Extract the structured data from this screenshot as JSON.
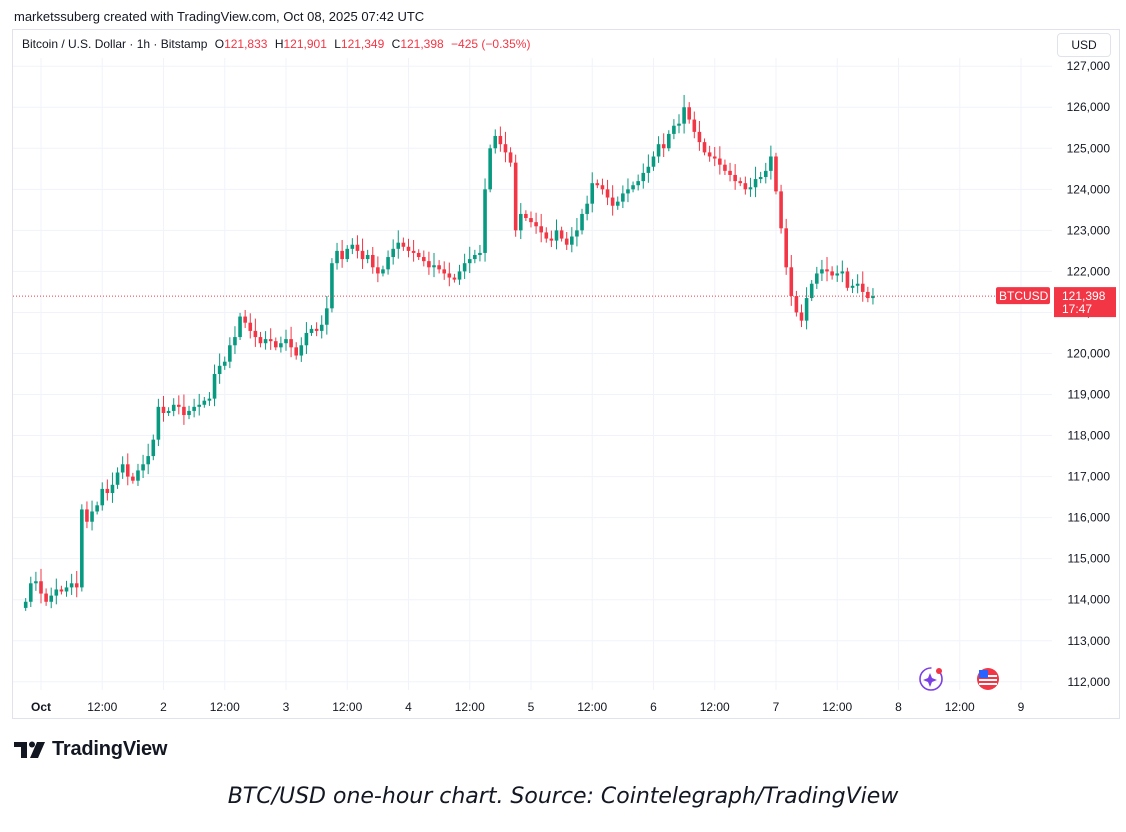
{
  "credit": "marketssuberg created with TradingView.com, Oct 08, 2025 07:42 UTC",
  "legend": {
    "symbol": "Bitcoin / U.S. Dollar · 1h · Bitstamp",
    "o_label": "O",
    "o_value": "121,833",
    "h_label": "H",
    "h_value": "121,901",
    "l_label": "L",
    "l_value": "121,349",
    "c_label": "C",
    "c_value": "121,398",
    "change": "−425 (−0.35%)"
  },
  "currency_button": "USD",
  "price_tag": {
    "symbol": "BTCUSD",
    "price": "121,398",
    "countdown": "17:47"
  },
  "brand": "TradingView",
  "caption": "BTC/USD one-hour chart. Source: Cointelegraph/TradingView",
  "colors": {
    "up": "#089981",
    "down": "#f23645",
    "grid": "#f0f3fa",
    "text": "#131722"
  },
  "icons": [
    "tradingview-logo-icon",
    "ai-sparkle-icon",
    "us-flag-icon"
  ],
  "chart_data": {
    "type": "candlestick",
    "title": "",
    "xlabel": "",
    "ylabel": "",
    "ylim": [
      111800,
      127200
    ],
    "grid": true,
    "y_ticks": [
      112000,
      113000,
      114000,
      115000,
      116000,
      117000,
      118000,
      119000,
      120000,
      121000,
      122000,
      123000,
      124000,
      125000,
      126000,
      127000
    ],
    "y_tick_labels": [
      "112,000",
      "113,000",
      "114,000",
      "115,000",
      "116,000",
      "117,000",
      "118,000",
      "119,000",
      "120,000",
      "121,000",
      "122,000",
      "123,000",
      "124,000",
      "125,000",
      "126,000",
      "127,000"
    ],
    "x_ticks": [
      {
        "label": "Oct",
        "bold": true,
        "time": "2025-10-01 00:00"
      },
      {
        "label": "12:00",
        "time": "2025-10-01 12:00"
      },
      {
        "label": "2",
        "time": "2025-10-02 00:00"
      },
      {
        "label": "12:00",
        "time": "2025-10-02 12:00"
      },
      {
        "label": "3",
        "time": "2025-10-03 00:00"
      },
      {
        "label": "12:00",
        "time": "2025-10-03 12:00"
      },
      {
        "label": "4",
        "time": "2025-10-04 00:00"
      },
      {
        "label": "12:00",
        "time": "2025-10-04 12:00"
      },
      {
        "label": "5",
        "time": "2025-10-05 00:00"
      },
      {
        "label": "12:00",
        "time": "2025-10-05 12:00"
      },
      {
        "label": "6",
        "time": "2025-10-06 00:00"
      },
      {
        "label": "12:00",
        "time": "2025-10-06 12:00"
      },
      {
        "label": "7",
        "time": "2025-10-07 00:00"
      },
      {
        "label": "12:00",
        "time": "2025-10-07 12:00"
      },
      {
        "label": "8",
        "time": "2025-10-08 00:00"
      },
      {
        "label": "12:00",
        "time": "2025-10-08 12:00"
      },
      {
        "label": "9",
        "time": "2025-10-09 00:00"
      }
    ],
    "last_price": 121398,
    "series_note": "hourly close estimates, 2025-09-30 21:00 to 2025-10-08 07:00",
    "close": [
      113950,
      114400,
      114450,
      114150,
      113950,
      114100,
      114250,
      114200,
      114300,
      114400,
      114300,
      116200,
      115900,
      116150,
      116300,
      116700,
      116600,
      116800,
      117100,
      117300,
      117000,
      116900,
      117150,
      117300,
      117500,
      117900,
      118700,
      118550,
      118600,
      118750,
      118700,
      118500,
      118600,
      118700,
      118750,
      118850,
      118900,
      119500,
      119700,
      119800,
      120200,
      120400,
      120900,
      120750,
      120550,
      120400,
      120250,
      120350,
      120300,
      120150,
      120250,
      120350,
      120150,
      119950,
      120200,
      120500,
      120600,
      120550,
      120700,
      121100,
      122200,
      122500,
      122300,
      122550,
      122650,
      122500,
      122300,
      122400,
      122100,
      121950,
      122050,
      122350,
      122550,
      122700,
      122600,
      122500,
      122450,
      122350,
      122250,
      122100,
      122150,
      122050,
      121950,
      121850,
      121800,
      122000,
      122200,
      122300,
      122400,
      122450,
      124000,
      125000,
      125300,
      125100,
      124900,
      124650,
      123000,
      123400,
      123300,
      123200,
      123100,
      122950,
      122800,
      122750,
      123000,
      122800,
      122650,
      122850,
      123000,
      123400,
      123650,
      124150,
      124100,
      124000,
      123800,
      123600,
      123700,
      123900,
      124000,
      124100,
      124200,
      124400,
      124550,
      124800,
      125100,
      125000,
      125350,
      125550,
      125600,
      126000,
      125700,
      125400,
      125150,
      124900,
      124800,
      124750,
      124600,
      124450,
      124350,
      124200,
      124150,
      124000,
      124050,
      124250,
      124300,
      124450,
      124800,
      123950,
      123050,
      122100,
      121400,
      121000,
      120800,
      121350,
      121700,
      121950,
      122050,
      122000,
      121900,
      121950,
      122000,
      121600,
      121650,
      121700,
      121500,
      121350,
      121398
    ]
  }
}
